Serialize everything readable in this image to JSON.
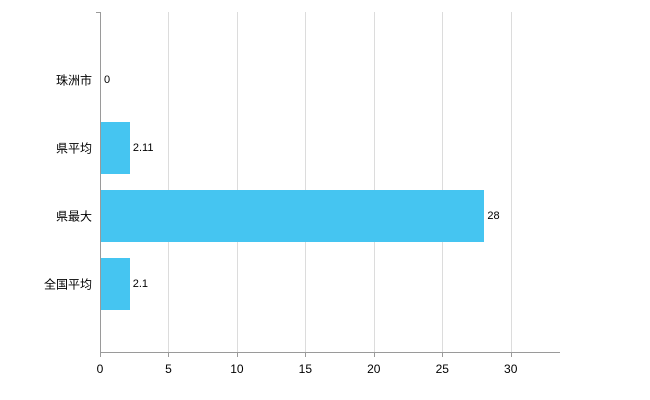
{
  "chart_data": {
    "type": "bar",
    "orientation": "horizontal",
    "title": "",
    "xlabel": "",
    "ylabel": "",
    "categories": [
      "珠洲市",
      "県平均",
      "県最大",
      "全国平均"
    ],
    "values": [
      0,
      2.11,
      28,
      2.1
    ],
    "value_labels": [
      "0",
      "2.11",
      "28",
      "2.1"
    ],
    "x_ticks": [
      0,
      5,
      10,
      15,
      20,
      25,
      30
    ],
    "xlim": [
      0,
      33.6
    ],
    "bar_color": "#45c5f1",
    "grid": true,
    "legend": "none",
    "background_color": "#ffffff"
  }
}
